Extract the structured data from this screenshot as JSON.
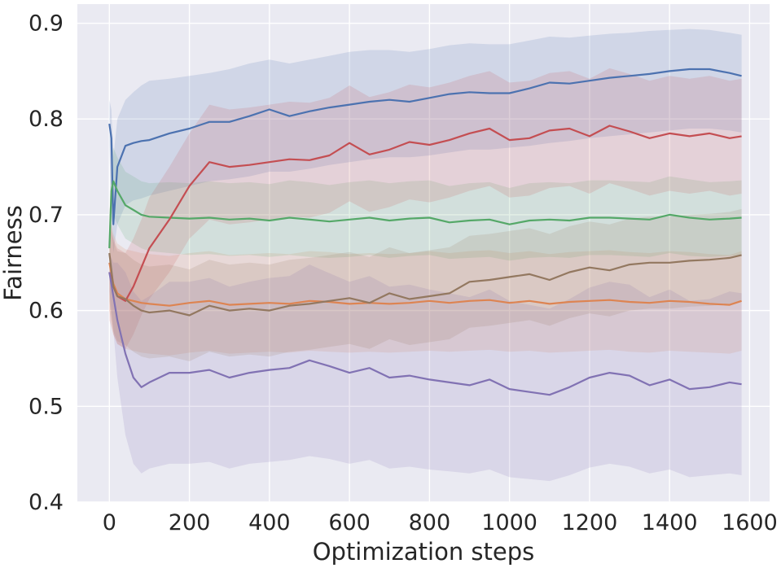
{
  "chart_data": {
    "type": "line",
    "title": "",
    "xlabel": "Optimization steps",
    "ylabel": "Fairness",
    "xlim": [
      -80,
      1650
    ],
    "ylim": [
      0.4,
      0.92
    ],
    "x_ticks": [
      0,
      200,
      400,
      600,
      800,
      1000,
      1200,
      1400,
      1600
    ],
    "y_ticks": [
      0.4,
      0.5,
      0.6,
      0.7,
      0.8,
      0.9
    ],
    "grid": true,
    "legend": "none",
    "colors": {
      "background": "#eaeaf2",
      "grid": "#ffffff",
      "text": "#262626"
    },
    "series": [
      {
        "color": "#4c72b0",
        "x": [
          0,
          5,
          10,
          20,
          40,
          60,
          80,
          100,
          150,
          200,
          250,
          300,
          350,
          400,
          450,
          500,
          550,
          600,
          650,
          700,
          750,
          800,
          850,
          900,
          950,
          1000,
          1050,
          1100,
          1150,
          1200,
          1250,
          1300,
          1350,
          1400,
          1450,
          1500,
          1550,
          1580
        ],
        "y": [
          0.795,
          0.78,
          0.69,
          0.75,
          0.772,
          0.775,
          0.777,
          0.778,
          0.785,
          0.79,
          0.797,
          0.797,
          0.803,
          0.81,
          0.803,
          0.808,
          0.812,
          0.815,
          0.818,
          0.82,
          0.818,
          0.822,
          0.826,
          0.828,
          0.827,
          0.827,
          0.832,
          0.838,
          0.837,
          0.84,
          0.843,
          0.845,
          0.847,
          0.85,
          0.852,
          0.852,
          0.848,
          0.845
        ],
        "lower": [
          0.77,
          0.7,
          0.66,
          0.69,
          0.71,
          0.715,
          0.717,
          0.72,
          0.725,
          0.73,
          0.735,
          0.737,
          0.74,
          0.745,
          0.745,
          0.748,
          0.752,
          0.755,
          0.758,
          0.76,
          0.76,
          0.762,
          0.765,
          0.768,
          0.768,
          0.77,
          0.772,
          0.775,
          0.777,
          0.78,
          0.782,
          0.784,
          0.786,
          0.788,
          0.79,
          0.79,
          0.788,
          0.786
        ],
        "upper": [
          0.82,
          0.81,
          0.76,
          0.8,
          0.82,
          0.828,
          0.835,
          0.84,
          0.842,
          0.845,
          0.848,
          0.852,
          0.858,
          0.862,
          0.858,
          0.862,
          0.866,
          0.87,
          0.872,
          0.872,
          0.87,
          0.873,
          0.877,
          0.879,
          0.878,
          0.878,
          0.882,
          0.886,
          0.885,
          0.887,
          0.889,
          0.89,
          0.892,
          0.893,
          0.894,
          0.893,
          0.89,
          0.888
        ]
      },
      {
        "color": "#dd8452",
        "x": [
          0,
          10,
          20,
          40,
          60,
          80,
          100,
          150,
          200,
          250,
          300,
          350,
          400,
          450,
          500,
          550,
          600,
          650,
          700,
          750,
          800,
          850,
          900,
          950,
          1000,
          1050,
          1100,
          1150,
          1200,
          1250,
          1300,
          1350,
          1400,
          1450,
          1500,
          1550,
          1580
        ],
        "y": [
          0.65,
          0.628,
          0.618,
          0.612,
          0.61,
          0.608,
          0.607,
          0.605,
          0.608,
          0.61,
          0.606,
          0.607,
          0.608,
          0.607,
          0.61,
          0.609,
          0.607,
          0.608,
          0.607,
          0.608,
          0.61,
          0.608,
          0.61,
          0.611,
          0.608,
          0.61,
          0.607,
          0.609,
          0.61,
          0.611,
          0.609,
          0.608,
          0.61,
          0.609,
          0.607,
          0.606,
          0.61
        ],
        "lower": [
          0.6,
          0.575,
          0.565,
          0.56,
          0.558,
          0.556,
          0.555,
          0.553,
          0.556,
          0.558,
          0.555,
          0.556,
          0.557,
          0.556,
          0.558,
          0.557,
          0.556,
          0.557,
          0.556,
          0.557,
          0.558,
          0.557,
          0.558,
          0.559,
          0.557,
          0.558,
          0.556,
          0.557,
          0.558,
          0.559,
          0.557,
          0.556,
          0.558,
          0.557,
          0.556,
          0.555,
          0.558
        ],
        "upper": [
          0.7,
          0.68,
          0.67,
          0.664,
          0.662,
          0.66,
          0.659,
          0.657,
          0.66,
          0.662,
          0.658,
          0.659,
          0.66,
          0.659,
          0.662,
          0.661,
          0.659,
          0.66,
          0.659,
          0.66,
          0.662,
          0.66,
          0.662,
          0.663,
          0.66,
          0.662,
          0.659,
          0.661,
          0.662,
          0.663,
          0.661,
          0.66,
          0.662,
          0.661,
          0.659,
          0.658,
          0.662
        ]
      },
      {
        "color": "#55a868",
        "x": [
          0,
          5,
          10,
          20,
          40,
          60,
          80,
          100,
          150,
          200,
          250,
          300,
          350,
          400,
          450,
          500,
          550,
          600,
          650,
          700,
          750,
          800,
          850,
          900,
          950,
          1000,
          1050,
          1100,
          1150,
          1200,
          1250,
          1300,
          1350,
          1400,
          1450,
          1500,
          1550,
          1580
        ],
        "y": [
          0.665,
          0.725,
          0.735,
          0.725,
          0.71,
          0.705,
          0.7,
          0.698,
          0.697,
          0.696,
          0.697,
          0.695,
          0.696,
          0.694,
          0.697,
          0.695,
          0.693,
          0.695,
          0.697,
          0.694,
          0.696,
          0.697,
          0.692,
          0.694,
          0.695,
          0.69,
          0.694,
          0.695,
          0.694,
          0.697,
          0.697,
          0.696,
          0.695,
          0.7,
          0.697,
          0.695,
          0.696,
          0.697
        ],
        "lower": [
          0.64,
          0.69,
          0.7,
          0.69,
          0.675,
          0.67,
          0.665,
          0.662,
          0.66,
          0.658,
          0.659,
          0.657,
          0.658,
          0.656,
          0.658,
          0.656,
          0.655,
          0.656,
          0.658,
          0.655,
          0.657,
          0.658,
          0.654,
          0.655,
          0.656,
          0.652,
          0.655,
          0.656,
          0.655,
          0.658,
          0.658,
          0.657,
          0.656,
          0.66,
          0.657,
          0.656,
          0.657,
          0.658
        ],
        "upper": [
          0.69,
          0.76,
          0.77,
          0.76,
          0.745,
          0.74,
          0.735,
          0.733,
          0.734,
          0.733,
          0.735,
          0.733,
          0.734,
          0.732,
          0.736,
          0.734,
          0.731,
          0.734,
          0.736,
          0.733,
          0.735,
          0.736,
          0.73,
          0.733,
          0.734,
          0.728,
          0.733,
          0.734,
          0.733,
          0.736,
          0.736,
          0.735,
          0.734,
          0.74,
          0.737,
          0.734,
          0.735,
          0.736
        ]
      },
      {
        "color": "#c44e52",
        "x": [
          0,
          10,
          20,
          40,
          60,
          80,
          100,
          150,
          200,
          250,
          300,
          350,
          400,
          450,
          500,
          550,
          600,
          650,
          700,
          750,
          800,
          850,
          900,
          950,
          1000,
          1050,
          1100,
          1150,
          1200,
          1250,
          1300,
          1350,
          1400,
          1450,
          1500,
          1550,
          1580
        ],
        "y": [
          0.64,
          0.625,
          0.615,
          0.61,
          0.625,
          0.645,
          0.665,
          0.695,
          0.73,
          0.755,
          0.75,
          0.752,
          0.755,
          0.758,
          0.757,
          0.762,
          0.775,
          0.763,
          0.768,
          0.776,
          0.773,
          0.778,
          0.785,
          0.79,
          0.778,
          0.78,
          0.788,
          0.79,
          0.782,
          0.793,
          0.787,
          0.78,
          0.785,
          0.782,
          0.785,
          0.78,
          0.782
        ],
        "lower": [
          0.59,
          0.575,
          0.565,
          0.56,
          0.575,
          0.595,
          0.612,
          0.64,
          0.675,
          0.695,
          0.69,
          0.692,
          0.695,
          0.698,
          0.697,
          0.702,
          0.714,
          0.703,
          0.708,
          0.716,
          0.713,
          0.718,
          0.725,
          0.73,
          0.718,
          0.72,
          0.728,
          0.73,
          0.722,
          0.733,
          0.727,
          0.72,
          0.725,
          0.722,
          0.725,
          0.72,
          0.722
        ],
        "upper": [
          0.69,
          0.675,
          0.665,
          0.66,
          0.675,
          0.695,
          0.718,
          0.75,
          0.785,
          0.815,
          0.81,
          0.812,
          0.815,
          0.818,
          0.817,
          0.822,
          0.835,
          0.823,
          0.828,
          0.836,
          0.833,
          0.838,
          0.845,
          0.85,
          0.838,
          0.84,
          0.848,
          0.85,
          0.842,
          0.853,
          0.847,
          0.84,
          0.845,
          0.842,
          0.845,
          0.84,
          0.842
        ]
      },
      {
        "color": "#8172b3",
        "x": [
          0,
          10,
          20,
          40,
          60,
          80,
          100,
          150,
          200,
          250,
          300,
          350,
          400,
          450,
          500,
          550,
          600,
          650,
          700,
          750,
          800,
          850,
          900,
          950,
          1000,
          1050,
          1100,
          1150,
          1200,
          1250,
          1300,
          1350,
          1400,
          1450,
          1500,
          1550,
          1580
        ],
        "y": [
          0.64,
          0.615,
          0.59,
          0.555,
          0.53,
          0.52,
          0.525,
          0.535,
          0.535,
          0.538,
          0.53,
          0.535,
          0.538,
          0.54,
          0.548,
          0.542,
          0.535,
          0.54,
          0.53,
          0.532,
          0.528,
          0.525,
          0.522,
          0.528,
          0.518,
          0.515,
          0.512,
          0.52,
          0.53,
          0.535,
          0.532,
          0.522,
          0.528,
          0.518,
          0.52,
          0.525,
          0.523
        ],
        "lower": [
          0.62,
          0.58,
          0.53,
          0.47,
          0.44,
          0.43,
          0.435,
          0.44,
          0.44,
          0.442,
          0.435,
          0.44,
          0.442,
          0.444,
          0.448,
          0.445,
          0.44,
          0.444,
          0.435,
          0.437,
          0.434,
          0.432,
          0.43,
          0.434,
          0.426,
          0.424,
          0.422,
          0.428,
          0.436,
          0.44,
          0.437,
          0.43,
          0.434,
          0.426,
          0.428,
          0.43,
          0.428
        ],
        "upper": [
          0.66,
          0.65,
          0.65,
          0.64,
          0.62,
          0.61,
          0.615,
          0.63,
          0.63,
          0.634,
          0.625,
          0.63,
          0.634,
          0.636,
          0.648,
          0.639,
          0.63,
          0.636,
          0.625,
          0.627,
          0.622,
          0.618,
          0.614,
          0.622,
          0.61,
          0.606,
          0.602,
          0.612,
          0.624,
          0.63,
          0.627,
          0.614,
          0.622,
          0.61,
          0.612,
          0.62,
          0.618
        ]
      },
      {
        "color": "#937860",
        "x": [
          0,
          10,
          20,
          40,
          60,
          80,
          100,
          150,
          200,
          250,
          300,
          350,
          400,
          450,
          500,
          550,
          600,
          650,
          700,
          750,
          800,
          850,
          900,
          950,
          1000,
          1050,
          1100,
          1150,
          1200,
          1250,
          1300,
          1350,
          1400,
          1450,
          1500,
          1550,
          1580
        ],
        "y": [
          0.66,
          0.625,
          0.615,
          0.612,
          0.605,
          0.6,
          0.598,
          0.6,
          0.595,
          0.605,
          0.6,
          0.602,
          0.6,
          0.605,
          0.607,
          0.61,
          0.613,
          0.608,
          0.618,
          0.612,
          0.615,
          0.618,
          0.63,
          0.632,
          0.635,
          0.638,
          0.632,
          0.64,
          0.645,
          0.642,
          0.648,
          0.65,
          0.65,
          0.652,
          0.653,
          0.655,
          0.658
        ],
        "lower": [
          0.61,
          0.578,
          0.568,
          0.564,
          0.557,
          0.552,
          0.55,
          0.552,
          0.547,
          0.557,
          0.552,
          0.554,
          0.552,
          0.557,
          0.559,
          0.562,
          0.565,
          0.56,
          0.57,
          0.564,
          0.567,
          0.57,
          0.582,
          0.584,
          0.587,
          0.59,
          0.584,
          0.592,
          0.597,
          0.594,
          0.6,
          0.602,
          0.602,
          0.604,
          0.605,
          0.607,
          0.61
        ],
        "upper": [
          0.71,
          0.672,
          0.662,
          0.66,
          0.653,
          0.648,
          0.646,
          0.648,
          0.643,
          0.653,
          0.648,
          0.65,
          0.648,
          0.653,
          0.655,
          0.658,
          0.661,
          0.656,
          0.666,
          0.66,
          0.663,
          0.666,
          0.678,
          0.68,
          0.683,
          0.686,
          0.68,
          0.688,
          0.693,
          0.69,
          0.696,
          0.698,
          0.698,
          0.7,
          0.701,
          0.703,
          0.706
        ]
      }
    ]
  }
}
